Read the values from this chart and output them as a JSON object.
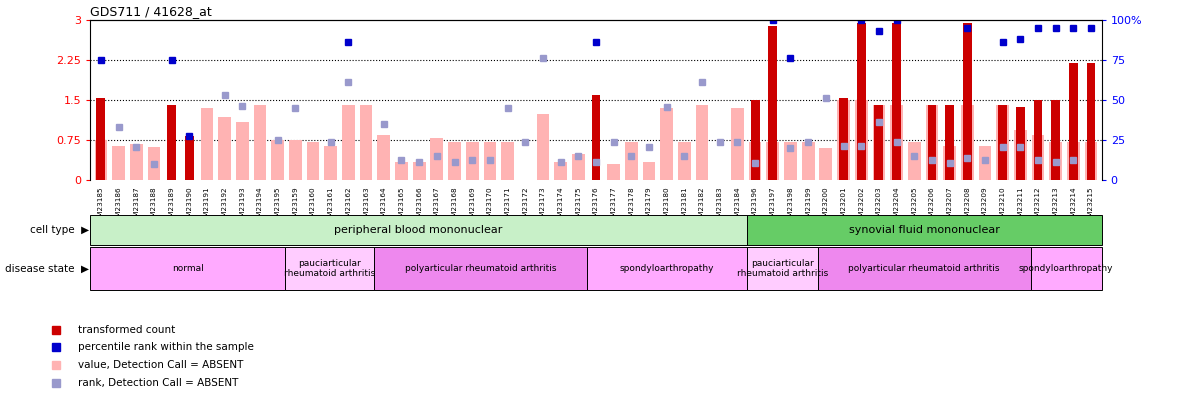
{
  "title": "GDS711 / 41628_at",
  "samples": [
    "GSM23185",
    "GSM23186",
    "GSM23187",
    "GSM23188",
    "GSM23189",
    "GSM23190",
    "GSM23191",
    "GSM23192",
    "GSM23193",
    "GSM23194",
    "GSM23195",
    "GSM23159",
    "GSM23160",
    "GSM23161",
    "GSM23162",
    "GSM23163",
    "GSM23164",
    "GSM23165",
    "GSM23166",
    "GSM23167",
    "GSM23168",
    "GSM23169",
    "GSM23170",
    "GSM23171",
    "GSM23172",
    "GSM23173",
    "GSM23174",
    "GSM23175",
    "GSM23176",
    "GSM23177",
    "GSM23178",
    "GSM23179",
    "GSM23180",
    "GSM23181",
    "GSM23182",
    "GSM23183",
    "GSM23184",
    "GSM23196",
    "GSM23197",
    "GSM23198",
    "GSM23199",
    "GSM23200",
    "GSM23201",
    "GSM23202",
    "GSM23203",
    "GSM23204",
    "GSM23205",
    "GSM23206",
    "GSM23207",
    "GSM23208",
    "GSM23209",
    "GSM23210",
    "GSM23211",
    "GSM23212",
    "GSM23213",
    "GSM23214",
    "GSM23215"
  ],
  "transformed_count": [
    1.55,
    0.0,
    0.0,
    0.0,
    1.42,
    0.82,
    0.0,
    0.0,
    0.0,
    0.0,
    0.0,
    0.0,
    0.0,
    0.0,
    0.0,
    0.0,
    0.0,
    0.0,
    0.0,
    0.0,
    0.0,
    0.0,
    0.0,
    0.0,
    0.0,
    0.0,
    0.0,
    0.0,
    1.6,
    0.0,
    0.0,
    0.0,
    0.0,
    0.0,
    0.0,
    0.0,
    0.0,
    1.5,
    2.9,
    0.0,
    0.0,
    0.0,
    1.55,
    2.95,
    1.42,
    2.95,
    0.0,
    1.42,
    1.42,
    2.95,
    0.0,
    1.42,
    1.38,
    1.5,
    1.5,
    2.2,
    2.2
  ],
  "pink_bars": [
    0.75,
    0.65,
    0.68,
    0.62,
    0.0,
    0.0,
    1.35,
    1.18,
    1.1,
    1.42,
    0.75,
    0.75,
    0.72,
    0.65,
    1.42,
    1.42,
    0.85,
    0.35,
    0.35,
    0.8,
    0.72,
    0.72,
    0.72,
    0.72,
    0.0,
    1.25,
    0.35,
    0.5,
    0.0,
    0.3,
    0.72,
    0.35,
    1.35,
    0.72,
    1.42,
    0.0,
    1.35,
    0.72,
    0.72,
    0.72,
    0.72,
    0.6,
    1.5,
    1.5,
    1.42,
    1.42,
    0.72,
    1.42,
    0.65,
    1.42,
    0.65,
    1.42,
    0.95,
    0.85,
    0.72,
    0.72,
    0.72
  ],
  "percentile_rank_present": [
    2.25,
    0.0,
    0.0,
    0.0,
    2.25,
    0.82,
    0.0,
    0.0,
    0.0,
    0.0,
    0.0,
    0.0,
    0.0,
    0.0,
    2.6,
    0.0,
    0.0,
    0.0,
    0.0,
    0.0,
    0.0,
    0.0,
    0.0,
    0.0,
    0.0,
    0.0,
    0.0,
    0.0,
    2.6,
    0.0,
    0.0,
    0.0,
    0.0,
    0.0,
    0.0,
    0.0,
    0.0,
    0.0,
    3.0,
    2.3,
    0.0,
    0.0,
    0.0,
    3.0,
    2.8,
    3.0,
    0.0,
    0.0,
    0.0,
    2.85,
    0.0,
    2.6,
    2.65,
    2.85,
    2.85,
    2.85,
    2.85
  ],
  "rank_absent": [
    0.0,
    1.0,
    0.62,
    0.3,
    0.0,
    0.0,
    0.0,
    1.6,
    1.4,
    0.0,
    0.75,
    1.35,
    0.0,
    0.72,
    1.85,
    0.0,
    1.05,
    0.38,
    0.35,
    0.45,
    0.35,
    0.38,
    0.38,
    1.35,
    0.72,
    2.3,
    0.35,
    0.45,
    0.35,
    0.72,
    0.45,
    0.62,
    1.38,
    0.45,
    1.85,
    0.72,
    0.72,
    0.32,
    0.0,
    0.6,
    0.72,
    1.55,
    0.65,
    0.65,
    1.1,
    0.72,
    0.45,
    0.38,
    0.32,
    0.42,
    0.38,
    0.62,
    0.62,
    0.38,
    0.35,
    0.38,
    0.0
  ],
  "cell_type_groups": [
    {
      "label": "peripheral blood mononuclear",
      "start": 0,
      "end": 36,
      "color": "#c8f0c8"
    },
    {
      "label": "synovial fluid mononuclear",
      "start": 37,
      "end": 56,
      "color": "#66cc66"
    }
  ],
  "disease_state_groups": [
    {
      "label": "normal",
      "start": 0,
      "end": 10,
      "color": "#ffaaff"
    },
    {
      "label": "pauciarticular\nrheumatoid arthritis",
      "start": 11,
      "end": 15,
      "color": "#ffccff"
    },
    {
      "label": "polyarticular rheumatoid arthritis",
      "start": 16,
      "end": 27,
      "color": "#ee88ee"
    },
    {
      "label": "spondyloarthropathy",
      "start": 28,
      "end": 36,
      "color": "#ffaaff"
    },
    {
      "label": "pauciarticular\nrheumatoid arthritis",
      "start": 37,
      "end": 40,
      "color": "#ffccff"
    },
    {
      "label": "polyarticular rheumatoid arthritis",
      "start": 41,
      "end": 52,
      "color": "#ee88ee"
    },
    {
      "label": "spondyloarthropathy",
      "start": 53,
      "end": 56,
      "color": "#ffaaff"
    }
  ],
  "ylim": [
    0,
    3.0
  ],
  "yticks": [
    0,
    0.75,
    1.5,
    2.25,
    3.0
  ],
  "right_yticks": [
    0,
    25,
    50,
    75,
    100
  ],
  "dotted_lines": [
    0.75,
    1.5,
    2.25
  ],
  "bar_color_red": "#cc0000",
  "bar_color_pink": "#ffb3b3",
  "dot_color_blue": "#0000cc",
  "dot_color_lightblue": "#9999cc"
}
